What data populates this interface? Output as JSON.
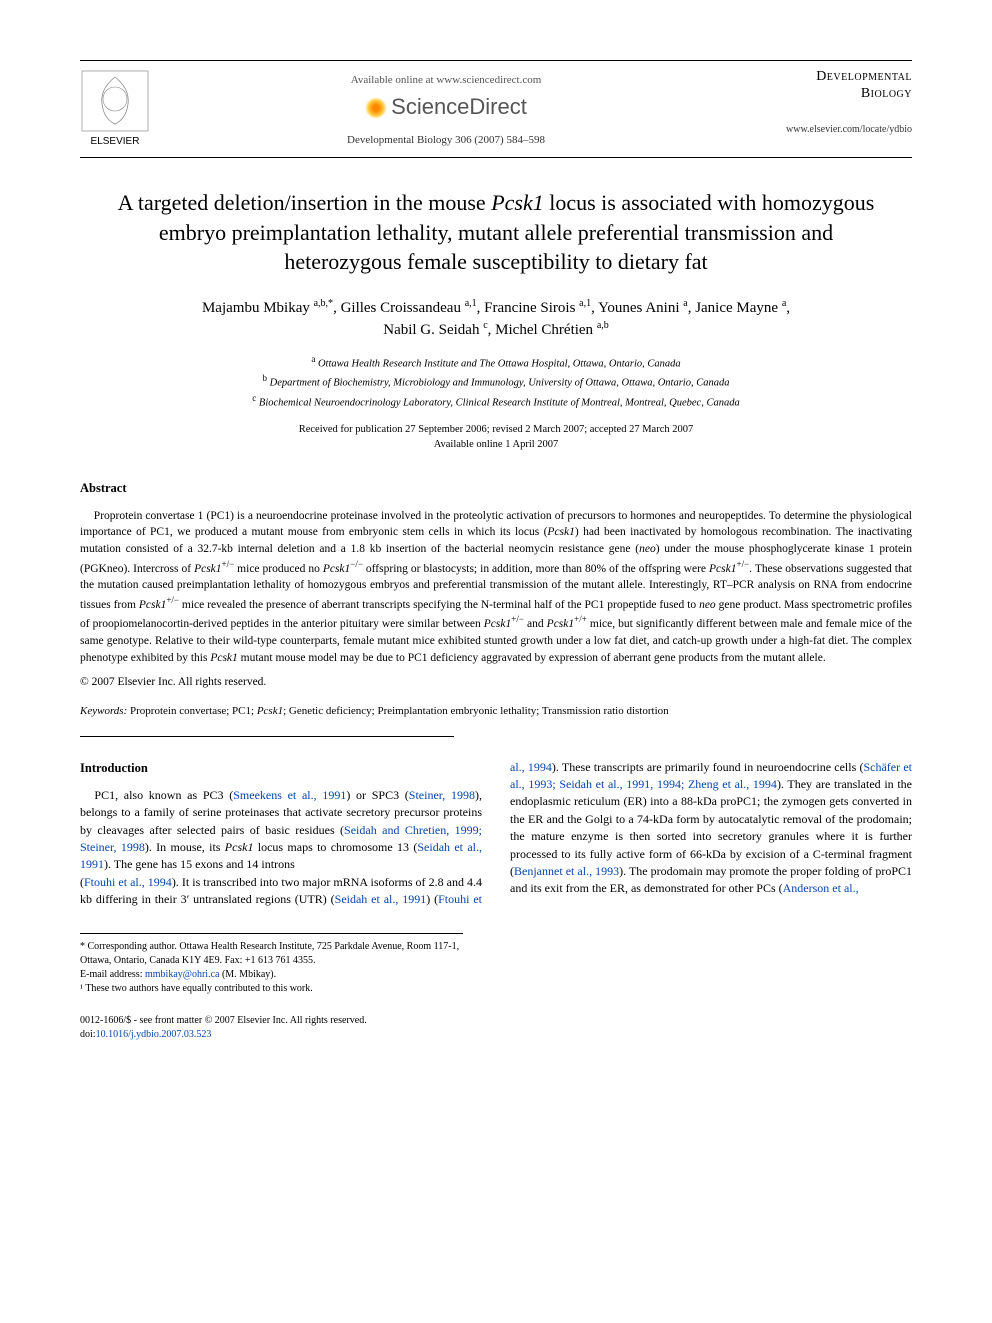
{
  "header": {
    "available_text": "Available online at www.sciencedirect.com",
    "sciencedirect_label": "ScienceDirect",
    "journal_ref": "Developmental Biology 306 (2007) 584–598",
    "publisher_label": "ELSEVIER",
    "journal_name_line1": "Developmental",
    "journal_name_line2": "Biology",
    "journal_url": "www.elsevier.com/locate/ydbio"
  },
  "title": {
    "html": "A targeted deletion/insertion in the mouse <span class=\"ital\">Pcsk1</span> locus is associated with homozygous embryo preimplantation lethality, mutant allele preferential transmission and heterozygous female susceptibility to dietary fat"
  },
  "authors": {
    "html": "Majambu Mbikay <sup>a,b,*</sup>, Gilles Croissandeau <sup>a,1</sup>, Francine Sirois <sup>a,1</sup>, Younes Anini <sup>a</sup>, Janice Mayne <sup>a</sup>,<br>Nabil G. Seidah <sup>c</sup>, Michel Chrétien <sup>a,b</sup>"
  },
  "affiliations": {
    "a": "Ottawa Health Research Institute and The Ottawa Hospital, Ottawa, Ontario, Canada",
    "b": "Department of Biochemistry, Microbiology and Immunology, University of Ottawa, Ottawa, Ontario, Canada",
    "c": "Biochemical Neuroendocrinology Laboratory, Clinical Research Institute of Montreal, Montreal, Quebec, Canada"
  },
  "dates": {
    "received": "Received for publication 27 September 2006; revised 2 March 2007; accepted 27 March 2007",
    "online": "Available online 1 April 2007"
  },
  "abstract": {
    "heading": "Abstract",
    "body_html": "Proprotein convertase 1 (PC1) is a neuroendocrine proteinase involved in the proteolytic activation of precursors to hormones and neuropeptides. To determine the physiological importance of PC1, we produced a mutant mouse from embryonic stem cells in which its locus (<span class=\"ital\">Pcsk1</span>) had been inactivated by homologous recombination. The inactivating mutation consisted of a 32.7-kb internal deletion and a 1.8 kb insertion of the bacterial neomycin resistance gene (<span class=\"ital\">neo</span>) under the mouse phosphoglycerate kinase 1 protein (PGKneo). Intercross of <span class=\"ital\">Pcsk1</span><sup>+/−</sup> mice produced no <span class=\"ital\">Pcsk1</span><sup>−/−</sup> offspring or blastocysts; in addition, more than 80% of the offspring were <span class=\"ital\">Pcsk1</span><sup>+/−</sup>. These observations suggested that the mutation caused preimplantation lethality of homozygous embryos and preferential transmission of the mutant allele. Interestingly, RT–PCR analysis on RNA from endocrine tissues from <span class=\"ital\">Pcsk1</span><sup>+/−</sup> mice revealed the presence of aberrant transcripts specifying the N-terminal half of the PC1 propeptide fused to <span class=\"ital\">neo</span> gene product. Mass spectrometric profiles of proopiomelanocortin-derived peptides in the anterior pituitary were similar between <span class=\"ital\">Pcsk1</span><sup>+/−</sup> and <span class=\"ital\">Pcsk1</span><sup>+/+</sup> mice, but significantly different between male and female mice of the same genotype. Relative to their wild-type counterparts, female mutant mice exhibited stunted growth under a low fat diet, and catch-up growth under a high-fat diet. The complex phenotype exhibited by this <span class=\"ital\">Pcsk1</span> mutant mouse model may be due to PC1 deficiency aggravated by expression of aberrant gene products from the mutant allele.",
    "copyright": "© 2007 Elsevier Inc. All rights reserved."
  },
  "keywords": {
    "label": "Keywords:",
    "list": "Proprotein convertase; PC1; Pcsk1; Genetic deficiency; Preimplantation embryonic lethality; Transmission ratio distortion"
  },
  "intro": {
    "heading": "Introduction",
    "col1_html": "PC1, also known as PC3 (<a href=\"#\">Smeekens et al., 1991</a>) or SPC3 (<a href=\"#\">Steiner, 1998</a>), belongs to a family of serine proteinases that activate secretory precursor proteins by cleavages after selected pairs of basic residues (<a href=\"#\">Seidah and Chretien, 1999; Steiner, 1998</a>). In mouse, its <span class=\"ital\">Pcsk1</span> locus maps to chromosome 13 (<a href=\"#\">Seidah et al., 1991</a>). The gene has 15 exons and 14 introns",
    "col2_html": "(<a href=\"#\">Ftouhi et al., 1994</a>). It is transcribed into two major mRNA isoforms of 2.8 and 4.4 kb differing in their 3′ untranslated regions (UTR) (<a href=\"#\">Seidah et al., 1991</a>) (<a href=\"#\">Ftouhi et al., 1994</a>). These transcripts are primarily found in neuroendocrine cells (<a href=\"#\">Schäfer et al., 1993; Seidah et al., 1991, 1994; Zheng et al., 1994</a>). They are translated in the endoplasmic reticulum (ER) into a 88-kDa proPC1; the zymogen gets converted in the ER and the Golgi to a 74-kDa form by autocatalytic removal of the prodomain; the mature enzyme is then sorted into secretory granules where it is further processed to its fully active form of 66-kDa by excision of a C-terminal fragment (<a href=\"#\">Benjannet et al., 1993</a>). The prodomain may promote the proper folding of proPC1 and its exit from the ER, as demonstrated for other PCs (<a href=\"#\">Anderson et al.,</a>"
  },
  "footnotes": {
    "corr": "* Corresponding author. Ottawa Health Research Institute, 725 Parkdale Avenue, Room 117-1, Ottawa, Ontario, Canada K1Y 4E9. Fax: +1 613 761 4355.",
    "email_label": "E-mail address:",
    "email": "mmbikay@ohri.ca",
    "email_suffix": "(M. Mbikay).",
    "note1": "¹ These two authors have equally contributed to this work."
  },
  "bottom": {
    "line1": "0012-1606/$ - see front matter © 2007 Elsevier Inc. All rights reserved.",
    "doi_label": "doi:",
    "doi": "10.1016/j.ydbio.2007.03.523"
  },
  "colors": {
    "link": "#0645ad",
    "text": "#000000",
    "muted": "#555555"
  }
}
